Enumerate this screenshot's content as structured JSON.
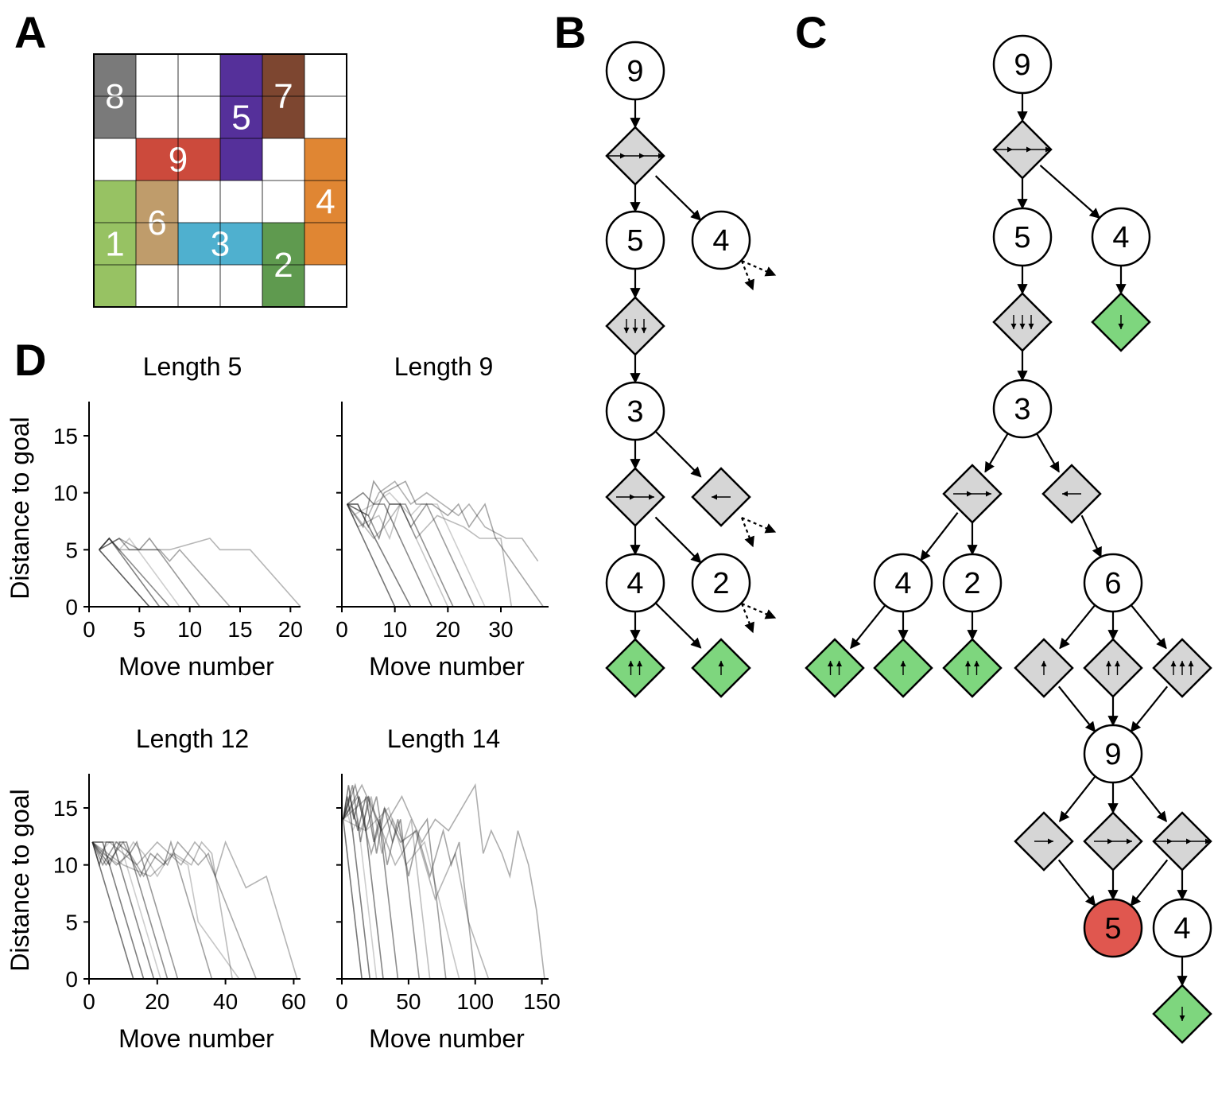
{
  "panels": {
    "a": "A",
    "b": "B",
    "c": "C",
    "d": "D"
  },
  "board": {
    "rows": 6,
    "cols": 6,
    "cars": [
      {
        "label": "8",
        "color": "#7a7a7a",
        "cells": [
          [
            0,
            0
          ],
          [
            1,
            0
          ]
        ]
      },
      {
        "label": "5",
        "color": "#55309a",
        "cells": [
          [
            0,
            3
          ],
          [
            1,
            3
          ],
          [
            2,
            3
          ]
        ]
      },
      {
        "label": "7",
        "color": "#7d4630",
        "cells": [
          [
            0,
            4
          ],
          [
            1,
            4
          ]
        ]
      },
      {
        "label": "9",
        "color": "#cc4a3c",
        "cells": [
          [
            2,
            1
          ],
          [
            2,
            2
          ]
        ]
      },
      {
        "label": "4",
        "color": "#e08633",
        "cells": [
          [
            2,
            5
          ],
          [
            3,
            5
          ],
          [
            4,
            5
          ]
        ]
      },
      {
        "label": "1",
        "color": "#97c263",
        "cells": [
          [
            3,
            0
          ],
          [
            4,
            0
          ],
          [
            5,
            0
          ]
        ]
      },
      {
        "label": "6",
        "color": "#bf9c6b",
        "cells": [
          [
            3,
            1
          ],
          [
            4,
            1
          ]
        ]
      },
      {
        "label": "3",
        "color": "#4fb0cf",
        "cells": [
          [
            4,
            2
          ],
          [
            4,
            3
          ]
        ]
      },
      {
        "label": "2",
        "color": "#5f9a4f",
        "cells": [
          [
            4,
            4
          ],
          [
            5,
            4
          ]
        ]
      }
    ]
  },
  "colors": {
    "move_node": "#d6d6d6",
    "terminal_move": "#7ed67e",
    "goal_car": "#e0574f",
    "trajectory": "#222222"
  },
  "tree_b": {
    "cars": [
      "9",
      "5",
      "4",
      "3",
      "2",
      "4"
    ],
    "moves": [
      "right-3",
      "down-3",
      "right-2",
      "left-1",
      "up-2",
      "up-1"
    ]
  },
  "tree_c": {
    "cars": [
      "9",
      "5",
      "4",
      "3",
      "4",
      "2",
      "6",
      "9",
      "5",
      "4"
    ],
    "moves": [
      "right-3",
      "down-3",
      "down-1",
      "right-2",
      "left-1",
      "up-2",
      "up-1",
      "up-2",
      "up-1",
      "up-2",
      "up-3",
      "right-1",
      "right-2",
      "right-3",
      "down-1"
    ]
  },
  "chart_data": [
    {
      "type": "line",
      "title": "Length 5",
      "xlabel": "Move number",
      "ylabel": "Distance to goal",
      "xlim": [
        0,
        21
      ],
      "ylim": [
        0,
        18
      ],
      "xticks": [
        0,
        5,
        10,
        15,
        20
      ],
      "yticks": [
        0,
        5,
        10,
        15
      ],
      "series": [
        {
          "x": [
            1,
            6
          ],
          "y": [
            5,
            0
          ]
        },
        {
          "x": [
            1,
            2,
            7
          ],
          "y": [
            5,
            6,
            0
          ]
        },
        {
          "x": [
            1,
            2,
            3,
            8
          ],
          "y": [
            5,
            6,
            5,
            0
          ]
        },
        {
          "x": [
            1,
            3,
            4,
            5,
            6,
            11
          ],
          "y": [
            5,
            6,
            5,
            5,
            6,
            0
          ]
        },
        {
          "x": [
            1,
            3,
            5,
            7,
            8,
            9,
            14
          ],
          "y": [
            5,
            6,
            5,
            5,
            4,
            5,
            0
          ]
        },
        {
          "x": [
            1,
            2,
            3,
            5,
            8,
            12,
            13,
            16,
            21
          ],
          "y": [
            5,
            6,
            5,
            5,
            5,
            6,
            5,
            5,
            0
          ]
        },
        {
          "x": [
            1,
            6
          ],
          "y": [
            5,
            0
          ]
        },
        {
          "x": [
            1,
            2,
            3,
            4,
            9
          ],
          "y": [
            5,
            6,
            5,
            6,
            0
          ]
        }
      ]
    },
    {
      "type": "line",
      "title": "Length 9",
      "xlabel": "Move number",
      "ylabel": "",
      "xlim": [
        0,
        39
      ],
      "ylim": [
        0,
        18
      ],
      "xticks": [
        0,
        10,
        20,
        30
      ],
      "yticks": [
        0,
        5,
        10,
        15
      ],
      "series": [
        {
          "x": [
            1,
            10
          ],
          "y": [
            9,
            0
          ]
        },
        {
          "x": [
            1,
            3,
            4,
            13
          ],
          "y": [
            9,
            9,
            8,
            0
          ]
        },
        {
          "x": [
            1,
            4,
            6,
            8,
            17
          ],
          "y": [
            9,
            10,
            9,
            9,
            0
          ]
        },
        {
          "x": [
            1,
            5,
            7,
            9,
            12,
            21
          ],
          "y": [
            9,
            8,
            6,
            9,
            9,
            0
          ]
        },
        {
          "x": [
            1,
            4,
            6,
            9,
            11,
            13,
            16,
            25
          ],
          "y": [
            9,
            7,
            11,
            9,
            9,
            7,
            9,
            0
          ]
        },
        {
          "x": [
            1,
            3,
            5,
            8,
            12,
            14,
            17,
            20,
            22,
            24,
            27,
            29,
            38
          ],
          "y": [
            9,
            9,
            7,
            10,
            11,
            9,
            9,
            8,
            9,
            7,
            9,
            6,
            0
          ]
        },
        {
          "x": [
            1,
            5,
            7,
            10,
            13,
            16,
            19,
            22,
            24,
            27,
            31,
            34,
            37
          ],
          "y": [
            9,
            8,
            10,
            11,
            9,
            10,
            9,
            8,
            9,
            7,
            6,
            6,
            4
          ]
        },
        {
          "x": [
            1,
            6,
            8,
            11,
            14,
            18,
            23,
            26,
            30,
            32
          ],
          "y": [
            9,
            6,
            7,
            9,
            6,
            8,
            7,
            6,
            6,
            0
          ]
        },
        {
          "x": [
            1,
            3,
            7,
            9,
            11,
            20
          ],
          "y": [
            9,
            7,
            8,
            6,
            9,
            0
          ]
        },
        {
          "x": [
            1,
            2,
            6,
            9,
            13,
            15,
            18,
            27
          ],
          "y": [
            9,
            8,
            9,
            10,
            8,
            9,
            9,
            0
          ]
        }
      ]
    },
    {
      "type": "line",
      "title": "Length 12",
      "xlabel": "Move number",
      "ylabel": "Distance to goal",
      "xlim": [
        0,
        62
      ],
      "ylim": [
        0,
        18
      ],
      "xticks": [
        0,
        20,
        40,
        60
      ],
      "yticks": [
        0,
        5,
        10,
        15
      ],
      "series": [
        {
          "x": [
            1,
            13
          ],
          "y": [
            12,
            0
          ]
        },
        {
          "x": [
            1,
            4,
            16
          ],
          "y": [
            12,
            12,
            0
          ]
        },
        {
          "x": [
            1,
            3,
            5,
            7,
            19
          ],
          "y": [
            12,
            10,
            12,
            12,
            0
          ]
        },
        {
          "x": [
            1,
            6,
            9,
            11,
            23
          ],
          "y": [
            12,
            10,
            12,
            12,
            0
          ]
        },
        {
          "x": [
            1,
            4,
            8,
            12,
            14,
            26
          ],
          "y": [
            12,
            10,
            12,
            11,
            12,
            0
          ]
        },
        {
          "x": [
            1,
            5,
            10,
            15,
            18,
            22,
            24,
            36
          ],
          "y": [
            12,
            10,
            12,
            9,
            11,
            10,
            12,
            0
          ]
        },
        {
          "x": [
            1,
            8,
            12,
            16,
            20,
            23,
            26,
            29,
            32,
            35,
            37,
            49
          ],
          "y": [
            12,
            10,
            11,
            9,
            11,
            10,
            12,
            11,
            10,
            11,
            9,
            0
          ]
        },
        {
          "x": [
            1,
            6,
            14,
            20,
            27,
            31,
            34,
            37,
            40,
            43,
            46,
            52,
            61
          ],
          "y": [
            12,
            12,
            10,
            12,
            10,
            12,
            11,
            9,
            12,
            10,
            8,
            9,
            0
          ]
        },
        {
          "x": [
            1,
            10,
            18,
            25,
            30,
            33,
            36,
            42
          ],
          "y": [
            12,
            10,
            9,
            11,
            10,
            12,
            11,
            0
          ]
        },
        {
          "x": [
            1,
            4,
            9,
            13,
            16,
            20,
            24,
            29,
            32,
            44
          ],
          "y": [
            12,
            11,
            10,
            12,
            11,
            9,
            11,
            10,
            5,
            0
          ]
        },
        {
          "x": [
            1,
            3,
            6,
            9,
            21
          ],
          "y": [
            12,
            11,
            12,
            12,
            0
          ]
        }
      ]
    },
    {
      "type": "line",
      "title": "Length 14",
      "xlabel": "Move number",
      "ylabel": "",
      "xlim": [
        0,
        155
      ],
      "ylim": [
        0,
        18
      ],
      "xticks": [
        0,
        50,
        100,
        150
      ],
      "yticks": [
        0,
        5,
        10,
        15
      ],
      "series": [
        {
          "x": [
            1,
            15
          ],
          "y": [
            14,
            0
          ]
        },
        {
          "x": [
            1,
            4,
            7,
            21
          ],
          "y": [
            14,
            16,
            14,
            0
          ]
        },
        {
          "x": [
            1,
            5,
            9,
            13,
            17,
            31
          ],
          "y": [
            14,
            17,
            14,
            16,
            14,
            0
          ]
        },
        {
          "x": [
            1,
            6,
            12,
            18,
            24,
            28,
            42
          ],
          "y": [
            14,
            16,
            13,
            16,
            12,
            14,
            0
          ]
        },
        {
          "x": [
            1,
            8,
            14,
            20,
            26,
            32,
            38,
            44,
            58
          ],
          "y": [
            14,
            17,
            12,
            16,
            11,
            15,
            12,
            14,
            0
          ]
        },
        {
          "x": [
            1,
            10,
            18,
            26,
            34,
            42,
            50,
            58,
            64,
            78
          ],
          "y": [
            14,
            17,
            13,
            16,
            10,
            14,
            9,
            13,
            14,
            0
          ]
        },
        {
          "x": [
            1,
            12,
            22,
            32,
            44,
            56,
            66,
            76,
            82,
            88,
            100
          ],
          "y": [
            14,
            16,
            11,
            15,
            12,
            13,
            9,
            13,
            10,
            12,
            0
          ]
        },
        {
          "x": [
            1,
            15,
            30,
            45,
            60,
            70,
            80,
            90,
            100,
            106,
            112,
            120,
            126,
            132,
            140,
            146,
            152
          ],
          "y": [
            14,
            17,
            13,
            16,
            12,
            14,
            13,
            15,
            17,
            11,
            13,
            11,
            9,
            13,
            10,
            6,
            0
          ]
        },
        {
          "x": [
            1,
            20,
            40,
            55,
            70,
            85,
            95,
            110
          ],
          "y": [
            14,
            16,
            10,
            13,
            7,
            11,
            5,
            0
          ]
        },
        {
          "x": [
            1,
            6,
            14,
            22,
            30,
            38,
            46,
            52,
            66
          ],
          "y": [
            14,
            15,
            13,
            16,
            11,
            14,
            12,
            14,
            0
          ]
        },
        {
          "x": [
            1,
            18,
            35,
            48,
            62,
            75,
            88
          ],
          "y": [
            14,
            13,
            15,
            10,
            12,
            6,
            0
          ]
        },
        {
          "x": [
            1,
            3,
            8,
            12,
            26
          ],
          "y": [
            14,
            15,
            13,
            14,
            0
          ]
        }
      ]
    }
  ]
}
